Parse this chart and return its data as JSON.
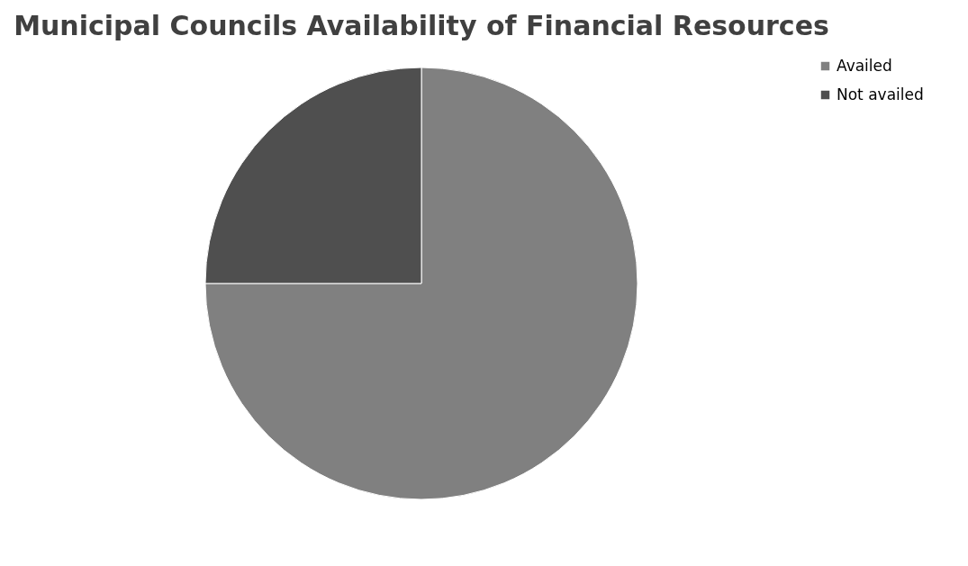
{
  "chart_data": {
    "type": "pie",
    "title": "Municipal Councils Availability of Financial Resources",
    "categories": [
      "Availed",
      "Not availed"
    ],
    "values": [
      75,
      25
    ],
    "colors": [
      "#808080",
      "#4f4f4f"
    ],
    "legend": "right"
  }
}
